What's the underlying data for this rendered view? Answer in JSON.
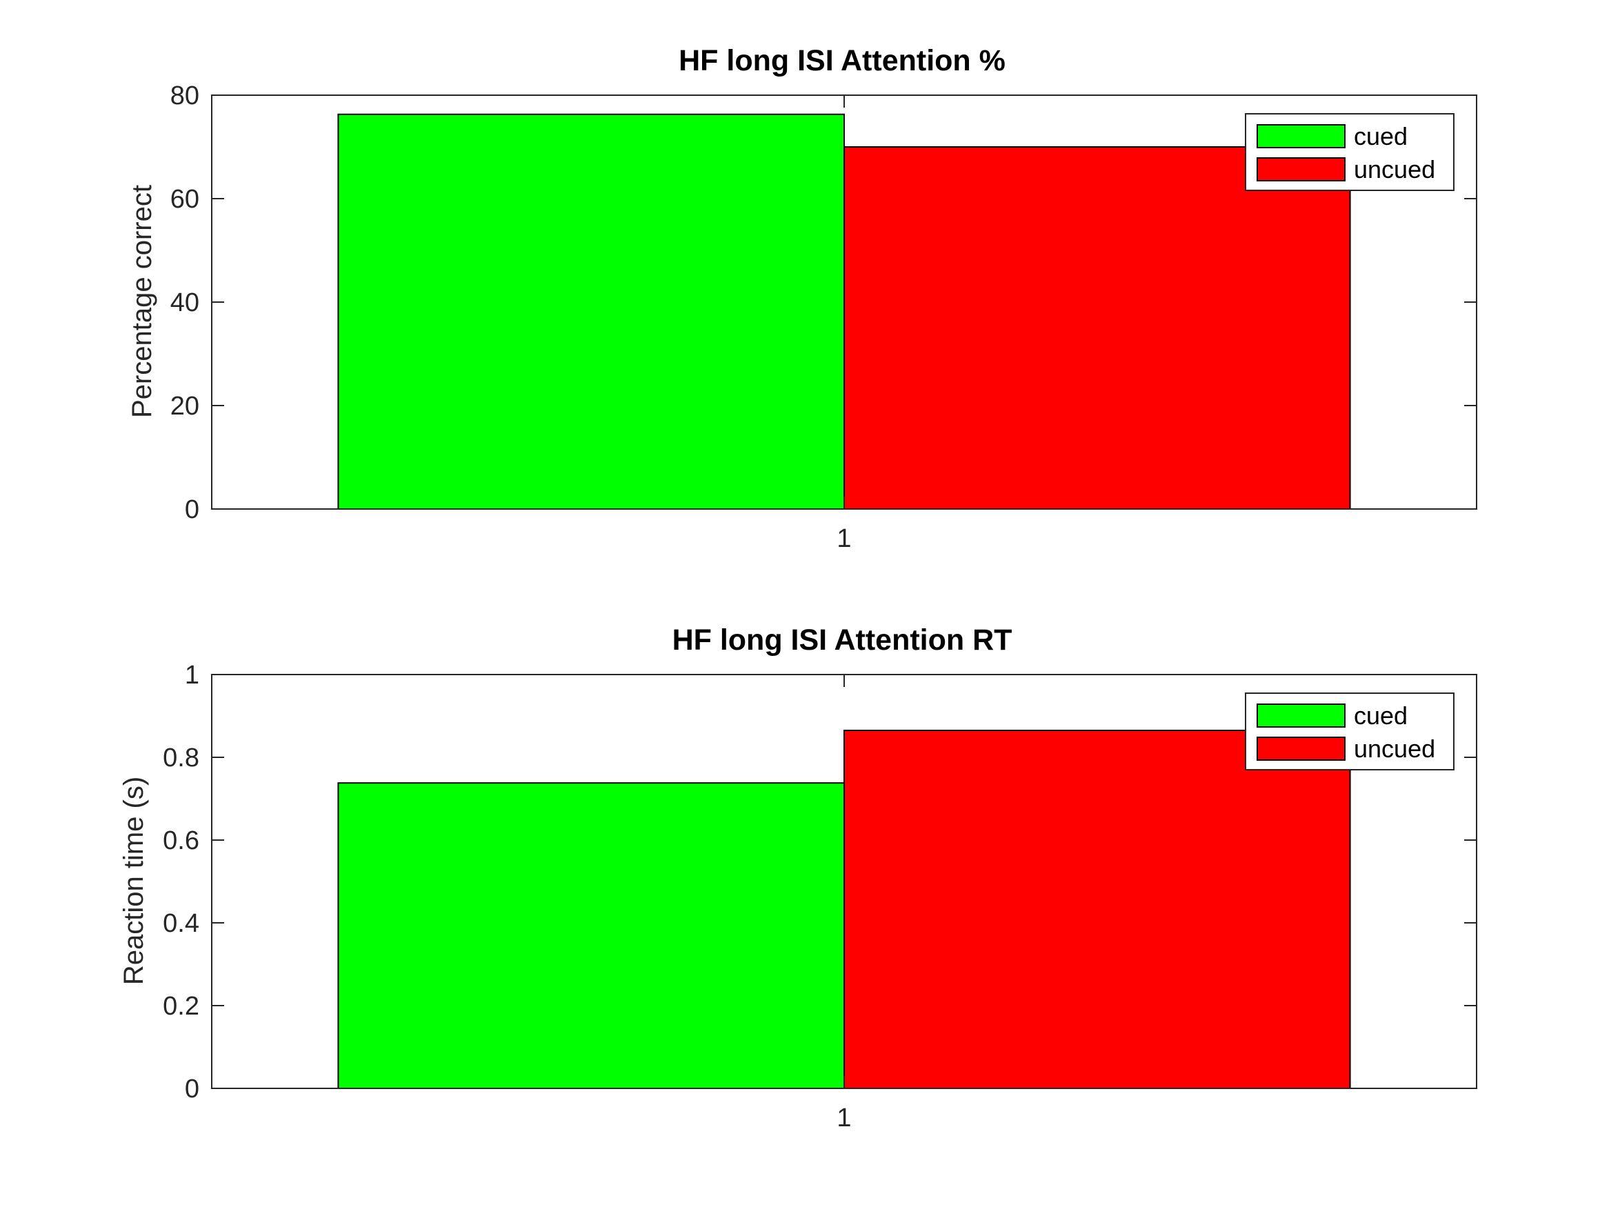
{
  "figure": {
    "background": "#ffffff"
  },
  "chart_data": [
    {
      "type": "bar",
      "title": "HF long ISI Attention %",
      "xlabel": "",
      "ylabel": "Percentage correct",
      "categories": [
        "1"
      ],
      "series": [
        {
          "name": "cued",
          "values": [
            76.3
          ],
          "color": "#00ff00"
        },
        {
          "name": "uncued",
          "values": [
            70.0
          ],
          "color": "#ff0000"
        }
      ],
      "ylim": [
        0,
        80
      ],
      "yticks": [
        "0",
        "20",
        "40",
        "60",
        "80"
      ],
      "grid": false,
      "legend_position": "top-right"
    },
    {
      "type": "bar",
      "title": "HF long ISI Attention RT",
      "xlabel": "",
      "ylabel": "Reaction time (s)",
      "categories": [
        "1"
      ],
      "series": [
        {
          "name": "cued",
          "values": [
            0.738
          ],
          "color": "#00ff00"
        },
        {
          "name": "uncued",
          "values": [
            0.865
          ],
          "color": "#ff0000"
        }
      ],
      "ylim": [
        0,
        1
      ],
      "yticks": [
        "0",
        "0.2",
        "0.4",
        "0.6",
        "0.8",
        "1"
      ],
      "grid": false,
      "legend_position": "top-right"
    }
  ]
}
